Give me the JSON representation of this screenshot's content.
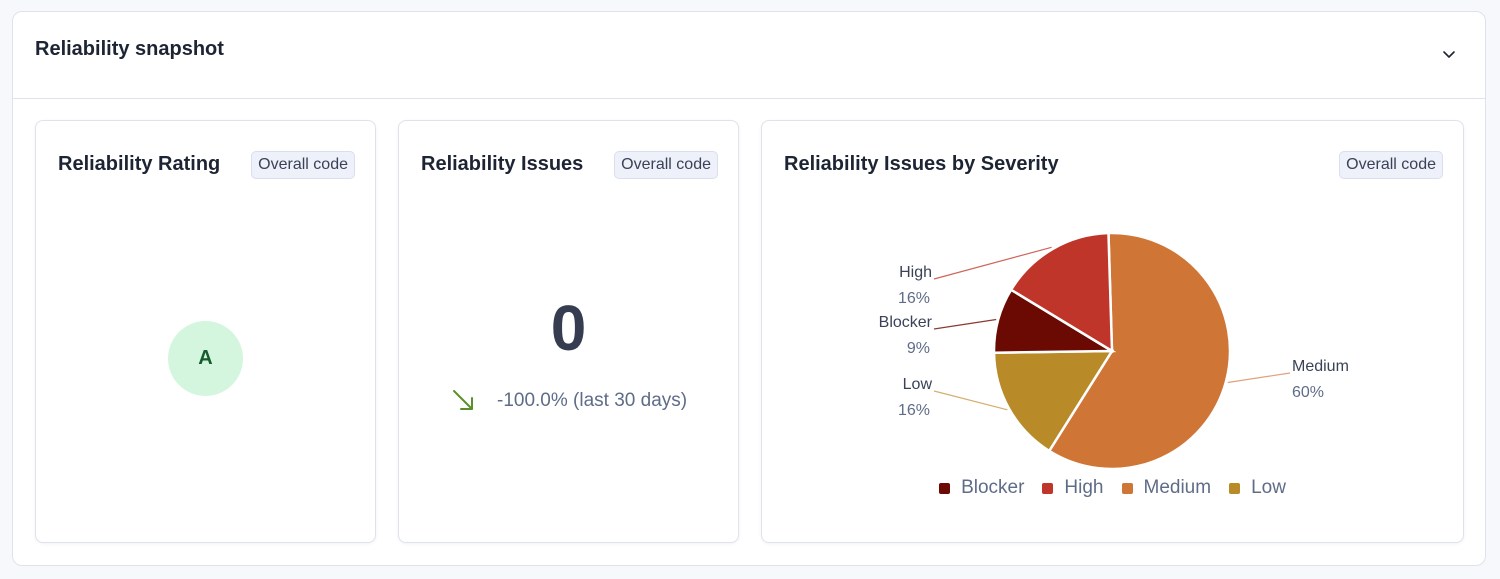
{
  "snapshot": {
    "title": "Reliability snapshot",
    "collapse_icon": "chevron-down-icon"
  },
  "rating_card": {
    "title": "Reliability Rating",
    "scope": "Overall code",
    "rating": "A",
    "rating_color": "#d4f6df"
  },
  "issues_card": {
    "title": "Reliability Issues",
    "scope": "Overall code",
    "count": "0",
    "trend_icon": "trend-down-arrow-icon",
    "trend_text": "-100.0% (last 30 days)",
    "trend_color": "#5a8f2c"
  },
  "severity_card": {
    "title": "Reliability Issues by Severity",
    "scope": "Overall code"
  },
  "chart_data": {
    "type": "pie",
    "title": "Reliability Issues by Severity",
    "categories": [
      "Blocker",
      "High",
      "Medium",
      "Low"
    ],
    "values": [
      9,
      16,
      60,
      16
    ],
    "labels": [
      "9%",
      "16%",
      "60%",
      "16%"
    ],
    "colors": [
      "#6b0a02",
      "#c0352a",
      "#cf7536",
      "#b88a28"
    ],
    "legend": "bottom"
  }
}
